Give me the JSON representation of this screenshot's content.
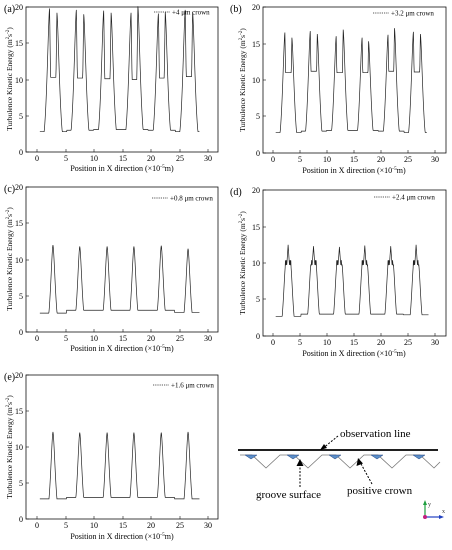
{
  "colors": {
    "curve": "#222222",
    "axis": "#111111",
    "groove_fill": "#5b8fc9",
    "groove_edge": "#1f3f7a",
    "axis_y": "#20a040",
    "axis_x": "#2040c0",
    "axis_z": "#c02080"
  },
  "panels": [
    {
      "letter": "(a)",
      "legend": "+4 μm crown",
      "ylabel_base": "Turbulence Kinetic Energy (m",
      "ylabel_sup1": "2",
      "ylabel_mid": "s",
      "ylabel_sup2": "-2",
      "ylabel_end": ")",
      "xlabel_base": "Position in  X direction (×10",
      "xlabel_sup": "-5",
      "xlabel_end": "m)",
      "xticks": [
        "0",
        "5",
        "10",
        "15",
        "20",
        "25",
        "30"
      ],
      "yticks": [
        "0",
        "5",
        "10",
        "15",
        "20"
      ]
    },
    {
      "letter": "(b)",
      "legend": "+3.2 μm crown",
      "ylabel_base": "Turbulence Kinetic Energy (m",
      "ylabel_sup1": "2",
      "ylabel_mid": "s",
      "ylabel_sup2": "-2",
      "ylabel_end": ")",
      "xlabel_base": "Position in  X direction (×10",
      "xlabel_sup": "-5",
      "xlabel_end": "m)",
      "xticks": [
        "0",
        "5",
        "10",
        "15",
        "20",
        "25",
        "30"
      ],
      "yticks": [
        "0",
        "5",
        "10",
        "15",
        "20"
      ]
    },
    {
      "letter": "(c)",
      "legend": "+0.8 μm crown",
      "ylabel_base": "Turbulence Kinetic Energy (m",
      "ylabel_sup1": "2",
      "ylabel_mid": "s",
      "ylabel_sup2": "-2",
      "ylabel_end": ")",
      "xlabel_base": "Position in  X direction (×10",
      "xlabel_sup": "-5",
      "xlabel_end": "m)",
      "xticks": [
        "0",
        "5",
        "10",
        "15",
        "20",
        "25",
        "30"
      ],
      "yticks": [
        "0",
        "5",
        "10",
        "15",
        "20"
      ]
    },
    {
      "letter": "(d)",
      "legend": "+2.4 μm crown",
      "ylabel_base": "Turbulence Kinetic Energy (m",
      "ylabel_sup1": "2",
      "ylabel_mid": "s",
      "ylabel_sup2": "-2",
      "ylabel_end": ")",
      "xlabel_base": "Position in  X direction (×10",
      "xlabel_sup": "-5",
      "xlabel_end": "m)",
      "xticks": [
        "0",
        "5",
        "10",
        "15",
        "20",
        "25",
        "30"
      ],
      "yticks": [
        "0",
        "5",
        "10",
        "15",
        "20"
      ]
    },
    {
      "letter": "(e)",
      "legend": "+1.6 μm crown",
      "ylabel_base": "Turbulence Kinetic Energy (m",
      "ylabel_sup1": "2",
      "ylabel_mid": "s",
      "ylabel_sup2": "-2",
      "ylabel_end": ")",
      "xlabel_base": "Position in  X direction (×10",
      "xlabel_sup": "-5",
      "xlabel_end": "m)",
      "xticks": [
        "0",
        "5",
        "10",
        "15",
        "20",
        "25",
        "30"
      ],
      "yticks": [
        "0",
        "5",
        "10",
        "15",
        "20"
      ]
    }
  ],
  "schematic": {
    "observation_line": "observation line",
    "groove_surface": "groove surface",
    "positive_crown": "positive crown",
    "axis_y": "y",
    "axis_x": "x"
  },
  "chart_data": [
    {
      "type": "line",
      "panel": "(a)",
      "series_name": "+4 μm crown",
      "xlim": [
        0,
        30
      ],
      "ylim": [
        0,
        20
      ],
      "x_start": 0.5,
      "x_end": 28.5,
      "peaks": [
        {
          "x1": 2.2,
          "y1": 19.8,
          "x2": 3.5,
          "y2": 19.2,
          "valley": 10.3
        },
        {
          "x1": 6.9,
          "y1": 19.6,
          "x2": 8.2,
          "y2": 19.0,
          "valley": 10.2
        },
        {
          "x1": 11.7,
          "y1": 19.5,
          "x2": 13.0,
          "y2": 19.2,
          "valley": 10.1
        },
        {
          "x1": 16.5,
          "y1": 19.2,
          "x2": 17.7,
          "y2": 20.1,
          "valley": 10.0
        },
        {
          "x1": 21.3,
          "y1": 19.1,
          "x2": 22.5,
          "y2": 19.3,
          "valley": 10.2
        },
        {
          "x1": 26.0,
          "y1": 19.6,
          "x2": 27.3,
          "y2": 19.3,
          "valley": 10.4
        }
      ],
      "troughs": [
        2.8,
        3.0,
        3.1,
        3.1,
        3.0,
        2.8
      ]
    },
    {
      "type": "line",
      "panel": "(b)",
      "series_name": "+3.2 μm crown",
      "xlim": [
        0,
        30
      ],
      "ylim": [
        0,
        20
      ],
      "x_start": 0.5,
      "x_end": 28.5,
      "peaks": [
        {
          "x1": 2.2,
          "y1": 16.5,
          "x2": 3.5,
          "y2": 15.8,
          "valley": 11.0
        },
        {
          "x1": 6.9,
          "y1": 16.7,
          "x2": 8.2,
          "y2": 16.3,
          "valley": 11.2
        },
        {
          "x1": 11.7,
          "y1": 16.0,
          "x2": 13.0,
          "y2": 16.9,
          "valley": 11.0
        },
        {
          "x1": 16.5,
          "y1": 15.8,
          "x2": 17.7,
          "y2": 15.3,
          "valley": 11.0
        },
        {
          "x1": 21.3,
          "y1": 16.2,
          "x2": 22.5,
          "y2": 17.1,
          "valley": 11.2
        },
        {
          "x1": 26.0,
          "y1": 16.6,
          "x2": 27.3,
          "y2": 16.3,
          "valley": 11.1
        }
      ],
      "troughs": [
        2.8,
        3.0,
        3.1,
        3.1,
        3.0,
        2.8
      ]
    },
    {
      "type": "line",
      "panel": "(c)",
      "series_name": "+0.8 μm crown",
      "xlim": [
        0,
        30
      ],
      "ylim": [
        0,
        20
      ],
      "x_start": 0.5,
      "x_end": 28.5,
      "peaks": [
        {
          "x": 2.8,
          "y": 12.0
        },
        {
          "x": 7.5,
          "y": 11.8
        },
        {
          "x": 12.3,
          "y": 11.8
        },
        {
          "x": 17.0,
          "y": 11.8
        },
        {
          "x": 21.8,
          "y": 11.9
        },
        {
          "x": 26.5,
          "y": 11.5
        }
      ],
      "troughs": [
        2.6,
        3.0,
        3.0,
        3.0,
        3.0,
        2.7
      ]
    },
    {
      "type": "line",
      "panel": "(d)",
      "series_name": "+2.4 μm crown",
      "xlim": [
        0,
        30
      ],
      "ylim": [
        0,
        20
      ],
      "x_start": 0.5,
      "x_end": 28.8,
      "peaks": [
        {
          "x1": 2.4,
          "y1": 10.0,
          "x2": 3.2,
          "y2": 10.0,
          "mid": 12.5
        },
        {
          "x1": 7.1,
          "y1": 10.0,
          "x2": 7.9,
          "y2": 10.0,
          "mid": 12.3
        },
        {
          "x1": 11.9,
          "y1": 10.0,
          "x2": 12.7,
          "y2": 10.0,
          "mid": 12.2
        },
        {
          "x1": 16.6,
          "y1": 10.0,
          "x2": 17.4,
          "y2": 10.0,
          "mid": 12.4
        },
        {
          "x1": 21.4,
          "y1": 10.0,
          "x2": 22.2,
          "y2": 10.0,
          "mid": 12.3
        },
        {
          "x1": 26.1,
          "y1": 10.0,
          "x2": 26.9,
          "y2": 10.0,
          "mid": 12.5
        }
      ],
      "troughs": [
        2.7,
        3.0,
        3.0,
        3.0,
        3.0,
        2.9
      ]
    },
    {
      "type": "line",
      "panel": "(e)",
      "series_name": "+1.6 μm crown",
      "xlim": [
        0,
        30
      ],
      "ylim": [
        0,
        20
      ],
      "x_start": 0.5,
      "x_end": 28.5,
      "peaks": [
        {
          "x": 2.8,
          "y": 12.1
        },
        {
          "x": 7.5,
          "y": 12.0
        },
        {
          "x": 12.3,
          "y": 12.0
        },
        {
          "x": 17.0,
          "y": 12.0
        },
        {
          "x": 21.8,
          "y": 12.0
        },
        {
          "x": 26.5,
          "y": 12.1
        }
      ],
      "troughs": [
        2.8,
        3.0,
        3.0,
        3.0,
        3.0,
        2.8
      ]
    }
  ]
}
